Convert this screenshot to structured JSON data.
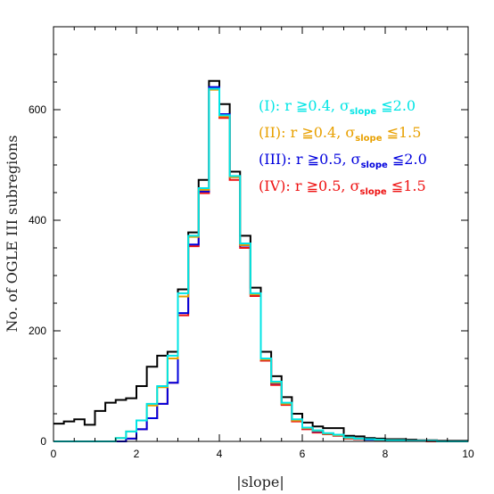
{
  "chart_data": {
    "type": "histogram",
    "xlabel": "|slope|",
    "ylabel": "No. of OGLE III subregions",
    "xlim": [
      0,
      10
    ],
    "ylim": [
      0,
      750
    ],
    "xticks": [
      0,
      2,
      4,
      6,
      8,
      10
    ],
    "yticks": [
      0,
      200,
      400,
      600
    ],
    "bin_width": 0.25,
    "bin_edges_start": 0,
    "grid": false,
    "legend_placement": "top-right",
    "series": [
      {
        "label": "(I): r ≧0.4, σ",
        "subscript": "slope",
        "label_tail": " ≦2.0",
        "color": "#00e5e5",
        "values": [
          0,
          0,
          0,
          0,
          0,
          0,
          6,
          18,
          38,
          68,
          100,
          155,
          268,
          372,
          458,
          638,
          590,
          480,
          358,
          268,
          150,
          108,
          70,
          40,
          25,
          20,
          15,
          12,
          7,
          5,
          4,
          3,
          2,
          2,
          1,
          1,
          1,
          0,
          0,
          0
        ]
      },
      {
        "label": "(II): r ≧0.4, σ",
        "subscript": "slope",
        "label_tail": " ≦1.5",
        "color": "#e8a000",
        "values": [
          0,
          0,
          0,
          0,
          0,
          0,
          6,
          18,
          38,
          65,
          98,
          150,
          262,
          370,
          455,
          636,
          588,
          478,
          355,
          266,
          148,
          106,
          68,
          38,
          24,
          19,
          14,
          11,
          6,
          5,
          4,
          3,
          2,
          2,
          1,
          1,
          1,
          0,
          0,
          0
        ]
      },
      {
        "label": "(III): r ≧0.5, σ",
        "subscript": "slope",
        "label_tail": " ≦2.0",
        "color": "#0000dd",
        "values": [
          0,
          0,
          0,
          0,
          0,
          0,
          0,
          5,
          22,
          42,
          68,
          106,
          232,
          356,
          452,
          641,
          592,
          478,
          354,
          266,
          148,
          105,
          68,
          38,
          24,
          18,
          14,
          11,
          6,
          5,
          3,
          3,
          2,
          2,
          1,
          1,
          1,
          0,
          0,
          0
        ]
      },
      {
        "label": "(IV): r ≧0.5, σ",
        "subscript": "slope",
        "label_tail": " ≦1.5",
        "color": "#ee1111",
        "values": [
          0,
          0,
          0,
          0,
          0,
          0,
          0,
          5,
          22,
          42,
          68,
          106,
          228,
          353,
          449,
          639,
          585,
          473,
          350,
          263,
          146,
          102,
          66,
          36,
          22,
          16,
          13,
          10,
          5,
          4,
          3,
          2,
          2,
          1,
          1,
          1,
          0,
          0,
          0,
          0
        ]
      },
      {
        "label": "",
        "color": "#000000",
        "values": [
          32,
          36,
          40,
          30,
          55,
          70,
          75,
          78,
          100,
          135,
          155,
          162,
          275,
          378,
          473,
          652,
          610,
          488,
          372,
          278,
          162,
          118,
          80,
          50,
          34,
          27,
          24,
          24,
          10,
          9,
          6,
          5,
          4,
          4,
          3,
          2,
          2,
          1,
          1,
          1
        ]
      }
    ]
  }
}
